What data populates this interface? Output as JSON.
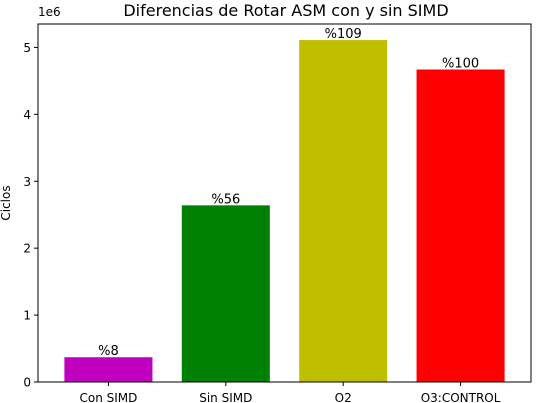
{
  "chart_data": {
    "type": "bar",
    "title": "Diferencias de Rotar ASM con y sin SIMD",
    "xlabel": "",
    "ylabel": "Ciclos",
    "y_offset_label": "1e6",
    "ylim": [
      0,
      5.35
    ],
    "y_ticks": [
      0,
      1,
      2,
      3,
      4,
      5
    ],
    "categories": [
      "Con SIMD",
      "Sin SIMD",
      "O2",
      "O3:CONTROL"
    ],
    "values": [
      0.37,
      2.64,
      5.11,
      4.67
    ],
    "bar_labels": [
      "%8",
      "%56",
      "%109",
      "%100"
    ],
    "colors": [
      "#bf00bf",
      "#008000",
      "#bfbf00",
      "#ff0000"
    ],
    "grid": false,
    "legend": "none"
  }
}
